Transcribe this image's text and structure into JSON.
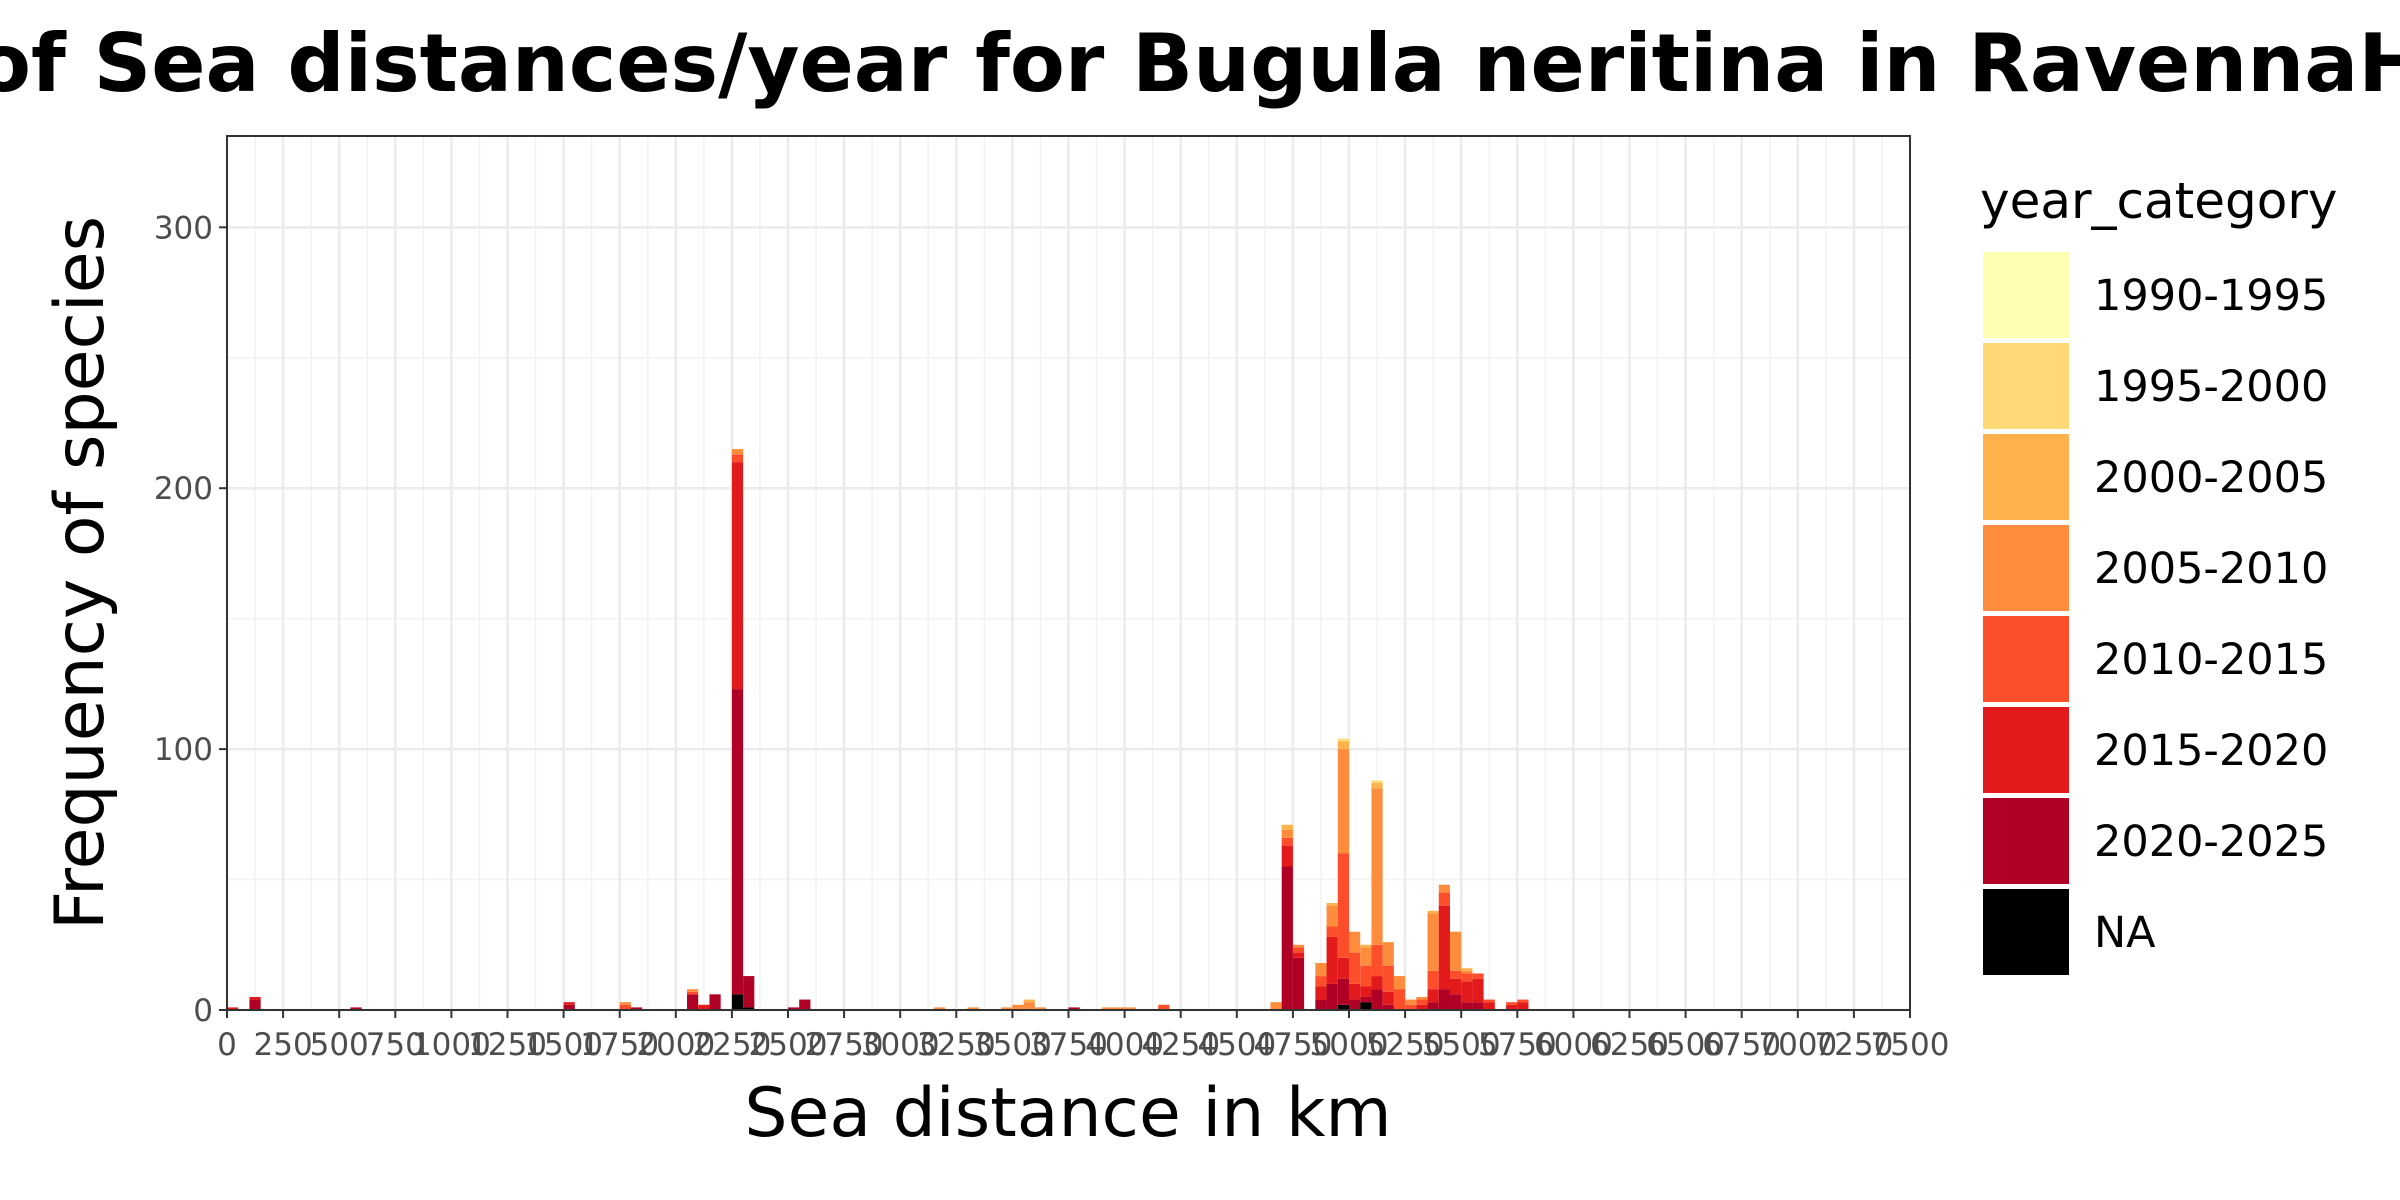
{
  "chart_data": {
    "type": "bar",
    "stacked": true,
    "title": "Frequencies of Sea distances/year for Bugula neritina in RavennaHarbour",
    "xlabel": "Sea distance in km",
    "ylabel": "Frequency of species",
    "xlim": [
      0,
      7500
    ],
    "ylim": [
      0,
      335
    ],
    "bin_width": 50,
    "x_ticks": [
      "0",
      "250",
      "500",
      "750",
      "1000",
      "1250",
      "1500",
      "1750",
      "2000",
      "2250",
      "2500",
      "2750",
      "3000",
      "3250",
      "3500",
      "3750",
      "4000",
      "4250",
      "4500",
      "4750",
      "5000",
      "5250",
      "5500",
      "5750",
      "6000",
      "6250",
      "6500",
      "6750",
      "7000",
      "7250",
      "7500"
    ],
    "x_tick_values": [
      0,
      250,
      500,
      750,
      1000,
      1250,
      1500,
      1750,
      2000,
      2250,
      2500,
      2750,
      3000,
      3250,
      3500,
      3750,
      4000,
      4250,
      4500,
      4750,
      5000,
      5250,
      5500,
      5750,
      6000,
      6250,
      6500,
      6750,
      7000,
      7250,
      7500
    ],
    "y_ticks": [
      "0",
      "100",
      "200",
      "300"
    ],
    "y_tick_values": [
      0,
      100,
      200,
      300
    ],
    "legend": {
      "title": "year_category",
      "placement": "right",
      "entries": [
        "1990-1995",
        "1995-2000",
        "2000-2005",
        "2005-2010",
        "2010-2015",
        "2015-2020",
        "2020-2025",
        "NA"
      ]
    },
    "colors": {
      "1990-1995": "#FFFFB2",
      "1995-2000": "#FED976",
      "2000-2005": "#FEB24C",
      "2005-2010": "#FD8D3C",
      "2010-2015": "#FC4E2A",
      "2015-2020": "#E31A1C",
      "2020-2025": "#B10026",
      "NA": "#000000"
    },
    "bins": [
      {
        "x": 0,
        "stack": {
          "2015-2020": 1
        }
      },
      {
        "x": 100,
        "stack": {
          "2020-2025": 4,
          "2015-2020": 1
        }
      },
      {
        "x": 550,
        "stack": {
          "2020-2025": 1
        }
      },
      {
        "x": 1500,
        "stack": {
          "2020-2025": 2,
          "2015-2020": 1
        }
      },
      {
        "x": 1750,
        "stack": {
          "2010-2015": 2,
          "2005-2010": 1
        }
      },
      {
        "x": 1800,
        "stack": {
          "2020-2025": 1
        }
      },
      {
        "x": 2050,
        "stack": {
          "2020-2025": 6,
          "2010-2015": 1,
          "2005-2010": 1
        }
      },
      {
        "x": 2100,
        "stack": {
          "2015-2020": 2
        }
      },
      {
        "x": 2150,
        "stack": {
          "2020-2025": 6
        }
      },
      {
        "x": 2250,
        "stack": {
          "NA": 6,
          "2020-2025": 117,
          "2015-2020": 87,
          "2010-2015": 3,
          "2005-2010": 2
        }
      },
      {
        "x": 2300,
        "stack": {
          "2020-2025": 12,
          "NA": 1
        }
      },
      {
        "x": 2500,
        "stack": {
          "2020-2025": 1
        }
      },
      {
        "x": 2550,
        "stack": {
          "2020-2025": 4
        }
      },
      {
        "x": 3150,
        "stack": {
          "2005-2010": 1
        }
      },
      {
        "x": 3300,
        "stack": {
          "2005-2010": 1
        }
      },
      {
        "x": 3450,
        "stack": {
          "2005-2010": 1
        }
      },
      {
        "x": 3500,
        "stack": {
          "2005-2010": 2
        }
      },
      {
        "x": 3550,
        "stack": {
          "2005-2010": 3,
          "2000-2005": 1
        }
      },
      {
        "x": 3600,
        "stack": {
          "2005-2010": 1
        }
      },
      {
        "x": 3750,
        "stack": {
          "2020-2025": 1
        }
      },
      {
        "x": 3900,
        "stack": {
          "2005-2010": 1
        }
      },
      {
        "x": 3950,
        "stack": {
          "2005-2010": 1
        }
      },
      {
        "x": 4000,
        "stack": {
          "2005-2010": 1
        }
      },
      {
        "x": 4150,
        "stack": {
          "2010-2015": 2
        }
      },
      {
        "x": 4650,
        "stack": {
          "2005-2010": 3
        }
      },
      {
        "x": 4700,
        "stack": {
          "2020-2025": 55,
          "2015-2020": 8,
          "2010-2015": 3,
          "2005-2010": 3,
          "2000-2005": 2
        }
      },
      {
        "x": 4750,
        "stack": {
          "2020-2025": 20,
          "2015-2020": 2,
          "2010-2015": 2,
          "2005-2010": 1
        }
      },
      {
        "x": 4850,
        "stack": {
          "2020-2025": 4,
          "2015-2020": 5,
          "2010-2015": 4,
          "2005-2010": 5
        }
      },
      {
        "x": 4900,
        "stack": {
          "2020-2025": 10,
          "2015-2020": 18,
          "2010-2015": 4,
          "2005-2010": 8,
          "2000-2005": 1
        }
      },
      {
        "x": 4950,
        "stack": {
          "NA": 2,
          "2020-2025": 10,
          "2015-2020": 8,
          "2010-2015": 40,
          "2005-2010": 40,
          "2000-2005": 3,
          "1995-2000": 1
        }
      },
      {
        "x": 5000,
        "stack": {
          "2020-2025": 4,
          "2015-2020": 6,
          "2010-2015": 12,
          "2005-2010": 8
        }
      },
      {
        "x": 5050,
        "stack": {
          "NA": 3,
          "2020-2025": 2,
          "2015-2020": 4,
          "2010-2015": 8,
          "2005-2010": 7,
          "2000-2005": 1
        }
      },
      {
        "x": 5100,
        "stack": {
          "2020-2025": 8,
          "2015-2020": 5,
          "2010-2015": 12,
          "2005-2010": 60,
          "2000-2005": 2,
          "1995-2000": 1
        }
      },
      {
        "x": 5150,
        "stack": {
          "2020-2025": 2,
          "2015-2020": 5,
          "2010-2015": 10,
          "2005-2010": 9
        }
      },
      {
        "x": 5200,
        "stack": {
          "2010-2015": 8,
          "2005-2010": 5
        }
      },
      {
        "x": 5250,
        "stack": {
          "2010-2015": 2,
          "2005-2010": 2
        }
      },
      {
        "x": 5300,
        "stack": {
          "2015-2020": 2,
          "2010-2015": 2,
          "2005-2010": 1
        }
      },
      {
        "x": 5350,
        "stack": {
          "2020-2025": 3,
          "2015-2020": 5,
          "2010-2015": 7,
          "2005-2010": 22,
          "2000-2005": 1
        }
      },
      {
        "x": 5400,
        "stack": {
          "2020-2025": 8,
          "2015-2020": 32,
          "2010-2015": 5,
          "2005-2010": 3
        }
      },
      {
        "x": 5450,
        "stack": {
          "2020-2025": 6,
          "2015-2020": 6,
          "2010-2015": 3,
          "2005-2010": 15
        }
      },
      {
        "x": 5500,
        "stack": {
          "2020-2025": 3,
          "2015-2020": 8,
          "2010-2015": 3,
          "2005-2010": 1,
          "2000-2005": 1
        }
      },
      {
        "x": 5550,
        "stack": {
          "2020-2025": 3,
          "2015-2020": 9,
          "2010-2015": 2
        }
      },
      {
        "x": 5600,
        "stack": {
          "2015-2020": 3,
          "2010-2015": 1
        }
      },
      {
        "x": 5700,
        "stack": {
          "2015-2020": 2,
          "2010-2015": 1
        }
      },
      {
        "x": 5750,
        "stack": {
          "2015-2020": 3,
          "2010-2015": 1
        }
      }
    ]
  }
}
